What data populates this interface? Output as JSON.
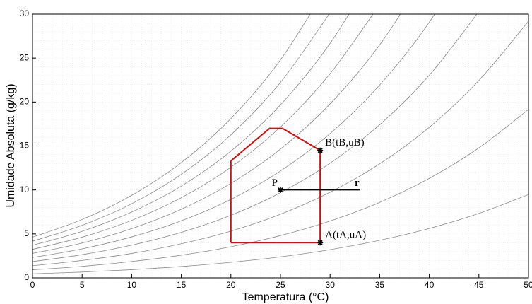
{
  "chart_data": {
    "type": "line",
    "xlabel": "Temperatura (°C)",
    "ylabel": "Umidade Absoluta (g/kg)",
    "x": [
      0,
      5,
      10,
      15,
      20,
      25,
      30,
      35,
      40,
      45,
      50
    ],
    "series": [
      {
        "color": "#8a8a8a",
        "values": [
          4.63,
          6.64,
          9.39,
          13.11,
          18.12,
          24.8,
          33.7,
          null,
          null,
          null,
          null
        ]
      },
      {
        "color": "#8a8a8a",
        "values": [
          4.17,
          5.97,
          8.43,
          11.78,
          16.26,
          22.24,
          30.16,
          null,
          null,
          null,
          null
        ]
      },
      {
        "color": "#8a8a8a",
        "values": [
          3.7,
          5.3,
          7.49,
          10.44,
          14.41,
          19.68,
          26.67,
          35.8,
          null,
          null,
          null
        ]
      },
      {
        "color": "#8a8a8a",
        "values": [
          3.24,
          4.63,
          6.54,
          9.12,
          12.58,
          17.17,
          23.22,
          31.1,
          null,
          null,
          null
        ]
      },
      {
        "color": "#8a8a8a",
        "values": [
          2.78,
          3.96,
          5.6,
          7.8,
          10.75,
          14.65,
          19.79,
          26.5,
          35.2,
          null,
          null
        ]
      },
      {
        "color": "#8a8a8a",
        "values": [
          2.31,
          3.3,
          4.66,
          6.49,
          8.93,
          12.16,
          16.41,
          21.94,
          29.08,
          38.3,
          null
        ]
      },
      {
        "color": "#8a8a8a",
        "values": [
          1.85,
          2.64,
          3.72,
          5.18,
          7.12,
          9.69,
          13.05,
          17.42,
          23.05,
          30.3,
          null
        ]
      },
      {
        "color": "#8a8a8a",
        "values": [
          1.38,
          1.98,
          2.78,
          3.88,
          5.32,
          7.24,
          9.74,
          12.98,
          17.13,
          22.45,
          29.19
        ]
      },
      {
        "color": "#8a8a8a",
        "values": [
          0.92,
          1.31,
          1.86,
          2.58,
          3.54,
          4.81,
          6.46,
          8.59,
          11.32,
          14.79,
          19.16
        ]
      },
      {
        "color": "#8a8a8a",
        "values": [
          0.46,
          0.66,
          0.93,
          1.29,
          1.77,
          2.39,
          3.21,
          4.27,
          5.62,
          7.33,
          9.47
        ]
      }
    ],
    "region": {
      "color": "#cc1111",
      "x": [
        20,
        29,
        29,
        25.2,
        23.9,
        22,
        20,
        20
      ],
      "y": [
        4,
        4,
        14.5,
        17,
        17,
        15.2,
        13.3,
        4
      ]
    },
    "markers": [
      {
        "label": "B(tB,uB)",
        "x": 29,
        "y": 14.5
      },
      {
        "label": "A(tA,uA)",
        "x": 29,
        "y": 4
      },
      {
        "label": "P",
        "x": 25,
        "y": 10
      }
    ],
    "vector": {
      "label": "r",
      "x": [
        25,
        33
      ],
      "y": [
        10,
        10
      ]
    },
    "xlim": [
      0,
      50
    ],
    "ylim": [
      0,
      30
    ],
    "xticks": [
      0,
      5,
      10,
      15,
      20,
      25,
      30,
      35,
      40,
      45,
      50
    ],
    "yticks": [
      0,
      5,
      10,
      15,
      20,
      25,
      30
    ],
    "grid": true
  }
}
